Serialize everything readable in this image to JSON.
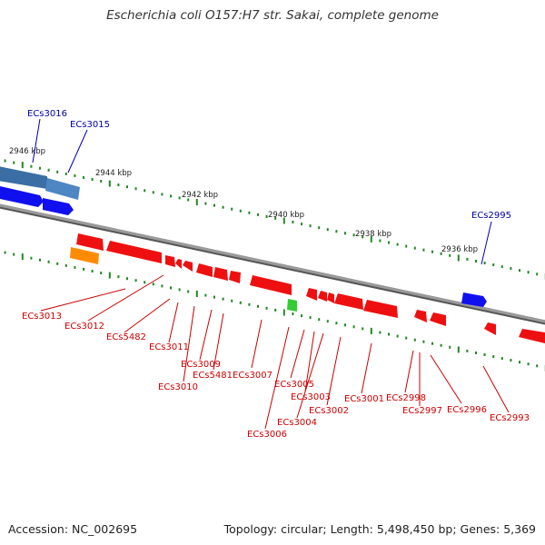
{
  "title": "Escherichia coli O157:H7 str. Sakai, complete genome",
  "footer": {
    "accession": "Accession: NC_002695",
    "summary": "Topology: circular; Length: 5,498,450 bp; Genes: 5,369"
  },
  "colors": {
    "forward_gene": "#1010ee",
    "reverse_gene": "#ee1010",
    "rna_gene": "#ff9900",
    "highlight_gene": "#33cc33",
    "backbone": "#888888",
    "tick": "#228822",
    "forward_label": "#0000aa",
    "reverse_label": "#cc0000"
  },
  "scale_ticks": [
    {
      "label": "2946 kbp"
    },
    {
      "label": "2944 kbp"
    },
    {
      "label": "2942 kbp"
    },
    {
      "label": "2940 kbp"
    },
    {
      "label": "2938 kbp"
    },
    {
      "label": "2936 kbp"
    }
  ],
  "forward_labels": [
    {
      "id": "ECs3016"
    },
    {
      "id": "ECs3015"
    },
    {
      "id": "ECs2995"
    }
  ],
  "reverse_labels": [
    {
      "id": "ECs3013"
    },
    {
      "id": "ECs3012"
    },
    {
      "id": "ECs5482"
    },
    {
      "id": "ECs3011"
    },
    {
      "id": "ECs3010"
    },
    {
      "id": "ECs3009"
    },
    {
      "id": "ECs5481"
    },
    {
      "id": "ECs3007"
    },
    {
      "id": "ECs3006"
    },
    {
      "id": "ECs3005"
    },
    {
      "id": "ECs3004"
    },
    {
      "id": "ECs3003"
    },
    {
      "id": "ECs3002"
    },
    {
      "id": "ECs3001"
    },
    {
      "id": "ECs2998"
    },
    {
      "id": "ECs2997"
    },
    {
      "id": "ECs2996"
    },
    {
      "id": "ECs2993"
    }
  ]
}
